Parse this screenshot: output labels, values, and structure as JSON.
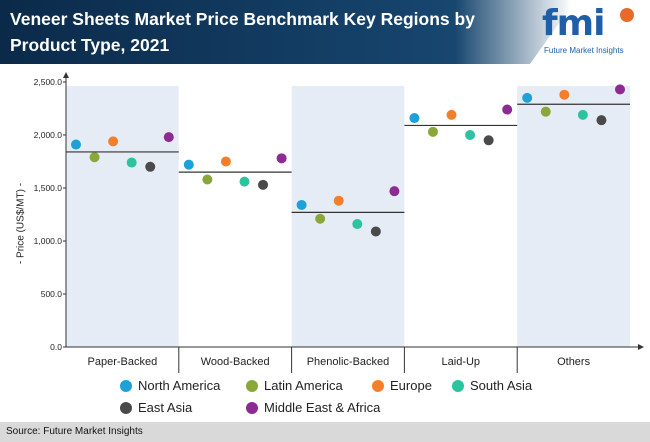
{
  "header": {
    "title": "Veneer Sheets Market Price Benchmark Key Regions by Product Type, 2021"
  },
  "logo": {
    "mark": "fmi",
    "tagline": "Future Market Insights",
    "accent_colors": [
      "#e86a2b",
      "#6ab04c",
      "#29a8e0",
      "#b8328a"
    ]
  },
  "footer": {
    "source": "Source: Future Market Insights"
  },
  "chart_data": {
    "type": "scatter",
    "ylabel": "- Price (US$/MT) -",
    "ylim": [
      0,
      2500
    ],
    "yticks": [
      "0.0",
      "500.0",
      "1,000.0",
      "1,500.0",
      "2,000.0",
      "2,500.0"
    ],
    "categories": [
      "Paper-Backed",
      "Wood-Backed",
      "Phenolic-Backed",
      "Laid-Up",
      "Others"
    ],
    "benchmarks": [
      1840,
      1650,
      1270,
      2090,
      2290
    ],
    "series": [
      {
        "name": "North America",
        "color": "#1da1d8",
        "values": [
          1910,
          1720,
          1340,
          2160,
          2350
        ]
      },
      {
        "name": "Latin America",
        "color": "#8aa83a",
        "values": [
          1790,
          1580,
          1210,
          2030,
          2220
        ]
      },
      {
        "name": "Europe",
        "color": "#f47f2a",
        "values": [
          1940,
          1750,
          1380,
          2190,
          2380
        ]
      },
      {
        "name": "South Asia",
        "color": "#2cc4a0",
        "values": [
          1740,
          1560,
          1160,
          2000,
          2190
        ]
      },
      {
        "name": "East Asia",
        "color": "#4a4a4a",
        "values": [
          1700,
          1530,
          1090,
          1950,
          2140
        ]
      },
      {
        "name": "Middle East & Africa",
        "color": "#8e2b93",
        "values": [
          1980,
          1780,
          1470,
          2240,
          2430
        ]
      }
    ],
    "band_colors": [
      "#e6ecf5",
      "#ffffff"
    ],
    "grid": false,
    "legend_position": "bottom"
  }
}
